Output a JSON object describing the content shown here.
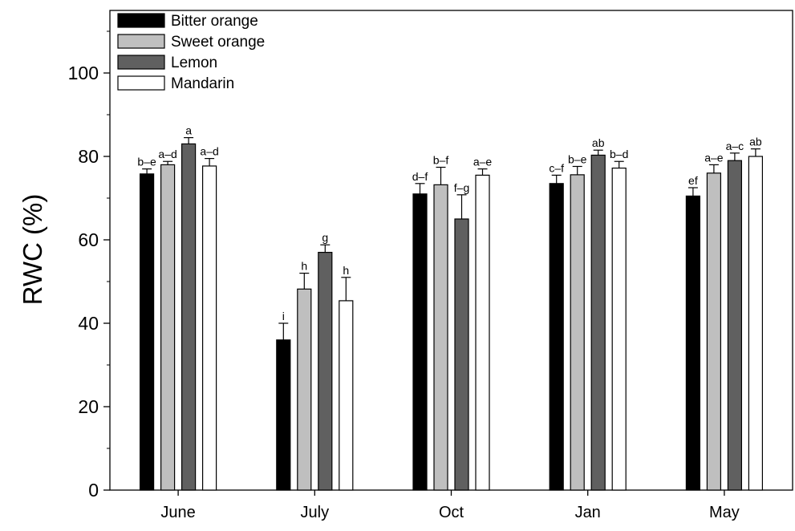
{
  "chart_data": {
    "type": "bar",
    "title": "",
    "xlabel": "",
    "ylabel": "RWC (%)",
    "ylim": [
      0,
      115
    ],
    "yticks": [
      "0",
      "20",
      "40",
      "60",
      "80",
      "100"
    ],
    "grid": false,
    "legend_position": "top-left",
    "categories": [
      "June",
      "July",
      "Oct",
      "Jan",
      "May"
    ],
    "series": [
      {
        "name": "Bitter orange",
        "color": "#000000",
        "values": [
          75.8,
          36.0,
          71.0,
          73.5,
          70.5
        ],
        "errors": [
          1.2,
          4.0,
          2.5,
          2.0,
          2.0
        ],
        "labels": [
          "b–e",
          "i",
          "d–f",
          "c–f",
          "ef"
        ]
      },
      {
        "name": "Sweet orange",
        "color": "#bfbfbf",
        "values": [
          78.0,
          48.2,
          73.2,
          75.6,
          76.0
        ],
        "errors": [
          0.8,
          3.8,
          4.2,
          2.0,
          2.0
        ],
        "labels": [
          "a–d",
          "h",
          "b–f",
          "b–e",
          "a–e"
        ]
      },
      {
        "name": "Lemon",
        "color": "#606060",
        "values": [
          83.0,
          57.0,
          65.0,
          80.3,
          79.0
        ],
        "errors": [
          1.5,
          1.8,
          5.8,
          1.2,
          1.8
        ],
        "labels": [
          "a",
          "g",
          "f–g",
          "ab",
          "a–c"
        ]
      },
      {
        "name": "Mandarin",
        "color": "#ffffff",
        "values": [
          77.7,
          45.4,
          75.5,
          77.2,
          80.0
        ],
        "errors": [
          1.8,
          5.6,
          1.5,
          1.6,
          1.8
        ],
        "labels": [
          "a–d",
          "h",
          "a–e",
          "b–d",
          "ab"
        ]
      }
    ]
  }
}
